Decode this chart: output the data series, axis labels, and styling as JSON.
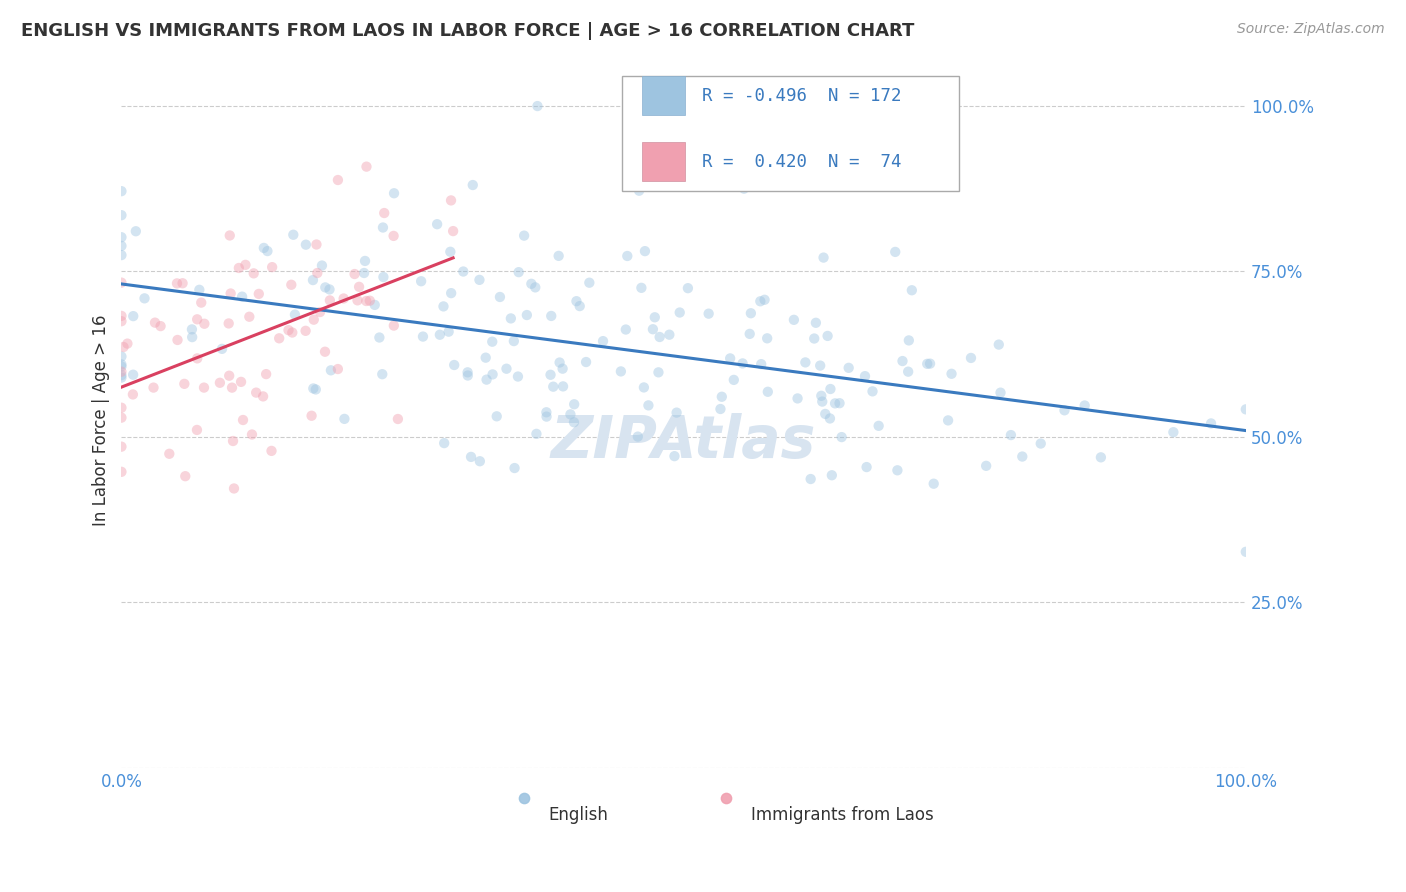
{
  "title": "ENGLISH VS IMMIGRANTS FROM LAOS IN LABOR FORCE | AGE > 16 CORRELATION CHART",
  "source_text": "Source: ZipAtlas.com",
  "ylabel": "In Labor Force | Age > 16",
  "xlim": [
    0.0,
    1.0
  ],
  "ylim": [
    0.0,
    1.05
  ],
  "yticks": [
    0.0,
    0.25,
    0.5,
    0.75,
    1.0
  ],
  "ytick_labels": [
    "",
    "25.0%",
    "50.0%",
    "75.0%",
    "100.0%"
  ],
  "xtick_left": "0.0%",
  "xtick_right": "100.0%",
  "legend_blue_R": "-0.496",
  "legend_blue_N": "172",
  "legend_pink_R": "0.420",
  "legend_pink_N": "74",
  "label_english": "English",
  "label_laos": "Immigrants from Laos",
  "scatter_alpha": 0.45,
  "scatter_size": 55,
  "blue_color": "#9ec4e0",
  "pink_color": "#f0a0b0",
  "blue_line_color": "#3a7abf",
  "pink_line_color": "#d94060",
  "title_color": "#333333",
  "source_color": "#999999",
  "watermark_text": "ZIPAtlas",
  "watermark_color": "#d8e4f0",
  "grid_color": "#cccccc",
  "grid_linestyle": "--",
  "background_color": "#ffffff",
  "right_tick_color": "#4a90d9",
  "bottom_tick_color": "#4a90d9"
}
